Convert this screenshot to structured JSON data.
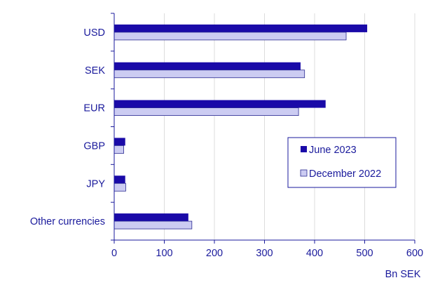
{
  "chart_data": {
    "type": "bar",
    "orientation": "horizontal",
    "title": "",
    "xlabel": "Bn SEK",
    "ylabel": "",
    "categories": [
      "USD",
      "SEK",
      "EUR",
      "GBP",
      "JPY",
      "Other currencies"
    ],
    "series": [
      {
        "name": "June 2023",
        "values": [
          505,
          372,
          422,
          22,
          22,
          148
        ],
        "color": "#1a0aa8"
      },
      {
        "name": "December 2022",
        "values": [
          463,
          380,
          368,
          19,
          23,
          155
        ],
        "color": "#ccccf2"
      }
    ],
    "xlim": [
      0,
      600
    ],
    "xticks": [
      0,
      100,
      200,
      300,
      400,
      500,
      600
    ],
    "grid": "vertical",
    "legend_position": "right-middle",
    "colors": {
      "text": "#1a1a9c",
      "axis": "#1a1a9c",
      "grid": "#dcdcdc",
      "bar_outline": "#2a2a90"
    }
  }
}
